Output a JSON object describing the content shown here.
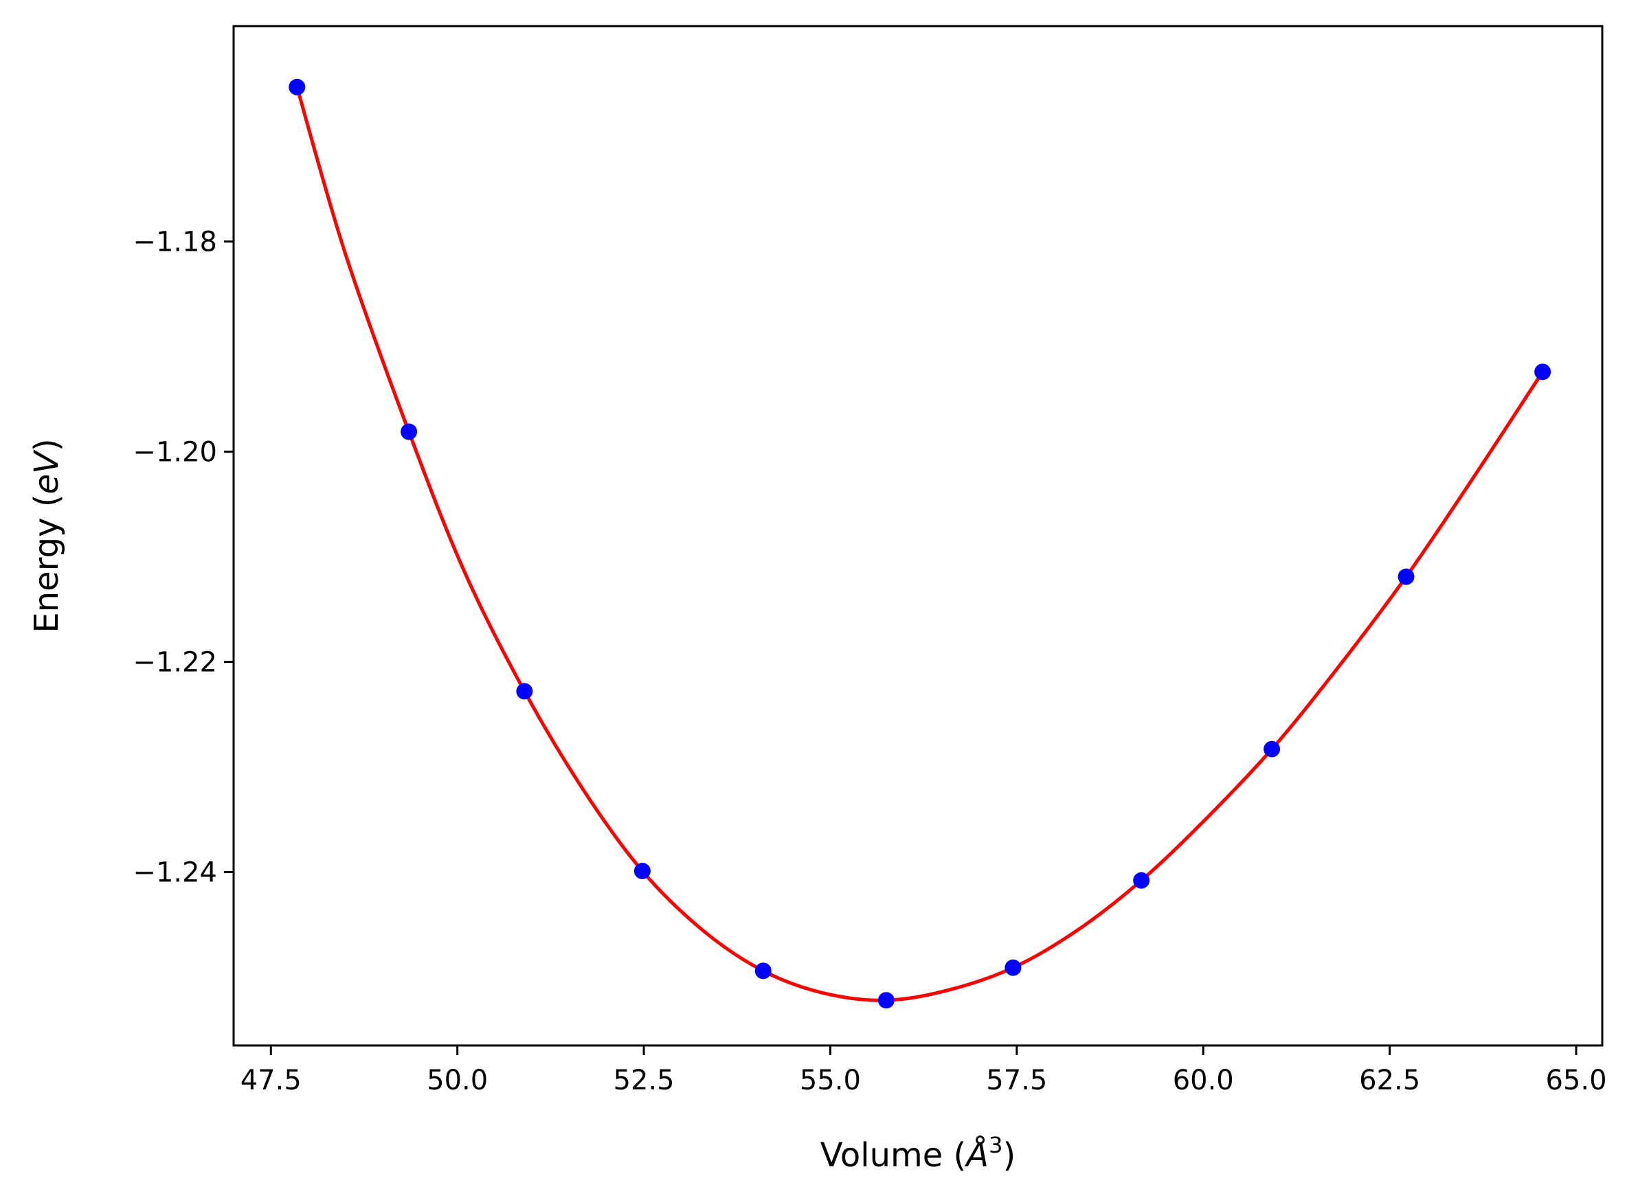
{
  "chart_data": {
    "type": "scatter",
    "title": "",
    "xlabel": "Volume (Å³)",
    "ylabel": "Energy (eV)",
    "xlabel_parts": {
      "pre": "Volume (",
      "sym": "Å",
      "sup": "3",
      "post": ")"
    },
    "ylabel_parts": {
      "pre": "Energy (",
      "ital": "eV",
      "post": ")"
    },
    "xlim": [
      47.0,
      65.35
    ],
    "ylim": [
      -1.2565,
      -1.1595
    ],
    "xticks": [
      47.5,
      50.0,
      52.5,
      55.0,
      57.5,
      60.0,
      62.5,
      65.0
    ],
    "xtick_labels": [
      "47.5",
      "50.0",
      "52.5",
      "55.0",
      "57.5",
      "60.0",
      "62.5",
      "65.0"
    ],
    "yticks": [
      -1.18,
      -1.2,
      -1.22,
      -1.24
    ],
    "ytick_labels": [
      "−1.18",
      "−1.20",
      "−1.22",
      "−1.24"
    ],
    "grid": false,
    "series": [
      {
        "kind": "points",
        "color": "#0000ff",
        "x": [
          47.85,
          49.35,
          50.9,
          52.48,
          54.1,
          55.75,
          57.45,
          59.17,
          60.92,
          62.72,
          64.55
        ],
        "y": [
          -1.1653,
          -1.1981,
          -1.2228,
          -1.2399,
          -1.2494,
          -1.2522,
          -1.2491,
          -1.2408,
          -1.2283,
          -1.2119,
          -1.1924
        ]
      },
      {
        "kind": "fit",
        "color": "#ff0000",
        "x": [
          47.85,
          48.5,
          49.35,
          50.1,
          50.9,
          51.7,
          52.48,
          53.3,
          54.1,
          54.9,
          55.75,
          56.6,
          57.45,
          58.3,
          59.17,
          60.0,
          60.92,
          61.8,
          62.72,
          63.6,
          64.55
        ],
        "y": [
          -1.1653,
          -1.1812,
          -1.1981,
          -1.2115,
          -1.2228,
          -1.2323,
          -1.2399,
          -1.2456,
          -1.2494,
          -1.2515,
          -1.2522,
          -1.2512,
          -1.2491,
          -1.2456,
          -1.2408,
          -1.2352,
          -1.2283,
          -1.2206,
          -1.2119,
          -1.2027,
          -1.1924
        ]
      }
    ]
  }
}
